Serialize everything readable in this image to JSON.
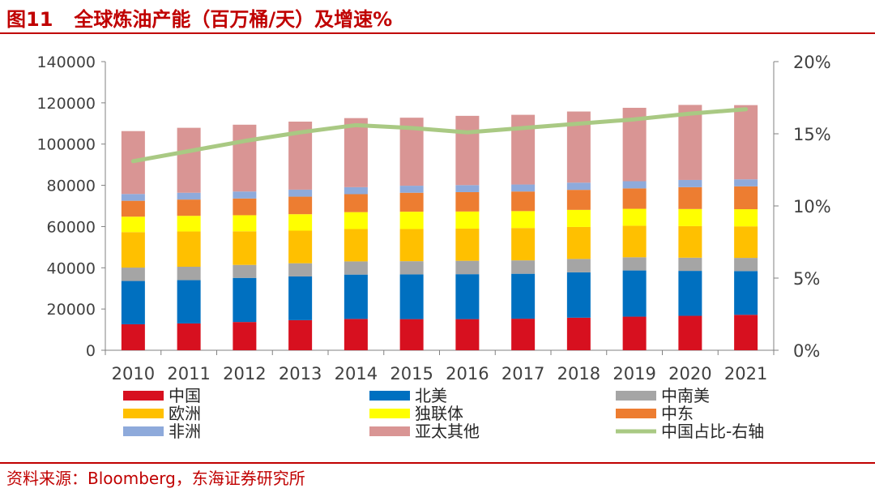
{
  "header": {
    "figure_label": "图11",
    "title": "全球炼油产能（百万桶/天）及增速%"
  },
  "source": "资料来源：Bloomberg，东海证券研究所",
  "chart_data": {
    "type": "bar",
    "stacked": true,
    "categories": [
      "2010",
      "2011",
      "2012",
      "2013",
      "2014",
      "2015",
      "2016",
      "2017",
      "2018",
      "2019",
      "2020",
      "2021"
    ],
    "ylim": [
      0,
      140000
    ],
    "yticks": [
      "0",
      "20000",
      "40000",
      "60000",
      "80000",
      "100000",
      "120000",
      "140000"
    ],
    "y2lim": [
      0,
      0.2
    ],
    "y2ticks": [
      "0%",
      "5%",
      "10%",
      "15%",
      "20%"
    ],
    "legend_position": "bottom",
    "series": [
      {
        "name": "中国",
        "color": "#d7101f",
        "values": [
          12600,
          13000,
          13700,
          14600,
          15200,
          15100,
          15100,
          15300,
          15800,
          16300,
          16700,
          17200
        ]
      },
      {
        "name": "北美",
        "color": "#0070c0",
        "values": [
          21000,
          21000,
          21400,
          21200,
          21500,
          21700,
          21800,
          21800,
          22000,
          22400,
          21800,
          21200
        ]
      },
      {
        "name": "中南美",
        "color": "#a5a5a5",
        "values": [
          6500,
          6500,
          6300,
          6400,
          6400,
          6400,
          6500,
          6500,
          6500,
          6400,
          6400,
          6400
        ]
      },
      {
        "name": "欧洲",
        "color": "#ffc000",
        "values": [
          17200,
          17100,
          16300,
          15800,
          15700,
          15600,
          15600,
          15700,
          15500,
          15300,
          15300,
          15300
        ]
      },
      {
        "name": "独联体",
        "color": "#ffff00",
        "values": [
          7500,
          7600,
          7800,
          8000,
          8200,
          8400,
          8300,
          8200,
          8300,
          8200,
          8300,
          8300
        ]
      },
      {
        "name": "中东",
        "color": "#ed7d31",
        "values": [
          7700,
          7900,
          8100,
          8500,
          8700,
          9200,
          9400,
          9500,
          9700,
          9900,
          10600,
          11100
        ]
      },
      {
        "name": "非洲",
        "color": "#8eaadb",
        "values": [
          3300,
          3300,
          3400,
          3400,
          3400,
          3400,
          3400,
          3400,
          3500,
          3500,
          3500,
          3400
        ]
      },
      {
        "name": "亚太其他",
        "color": "#d99594",
        "values": [
          30500,
          31500,
          32400,
          33000,
          33500,
          33000,
          33600,
          33800,
          34500,
          35600,
          36400,
          36000
        ]
      }
    ],
    "line_series": {
      "name": "中国占比-右轴",
      "color": "#a9c983",
      "axis": "right",
      "values": [
        0.131,
        0.138,
        0.145,
        0.151,
        0.156,
        0.154,
        0.151,
        0.154,
        0.157,
        0.16,
        0.164,
        0.167
      ]
    }
  }
}
